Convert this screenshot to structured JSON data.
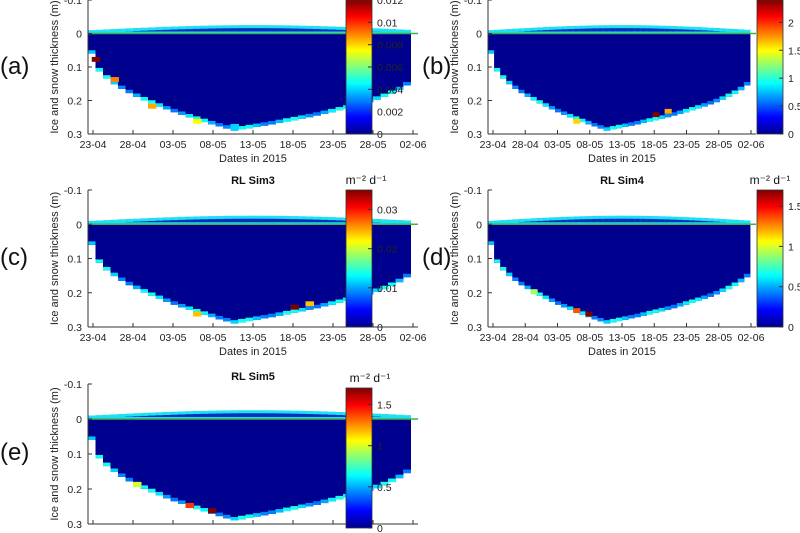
{
  "chart_data": [
    {
      "type": "heatmap",
      "panel_label": "(a)",
      "title": "",
      "xlabel": "Dates in 2015",
      "ylabel": "Ice and snow thickness (m)",
      "x_ticks": [
        "23-04",
        "28-04",
        "03-05",
        "08-05",
        "13-05",
        "18-05",
        "23-05",
        "28-05",
        "02-06"
      ],
      "y_ticks": [
        "-0.1",
        "0",
        "0.1",
        "0.2",
        "0.3"
      ],
      "ylim": [
        -0.1,
        0.3
      ],
      "colorbar_unit": "",
      "colorbar_ticks": [
        "0",
        "0.002",
        "0.004",
        "0.006",
        "0.008",
        "0.01",
        "0.012"
      ],
      "colorbar_range": [
        0,
        0.012
      ],
      "hotspots": [
        {
          "date_offset_days": 0.5,
          "depth_m": 0.08,
          "value": 0.012
        },
        {
          "date_offset_days": 3,
          "depth_m": 0.14,
          "value": 0.009
        },
        {
          "date_offset_days": 8,
          "depth_m": 0.22,
          "value": 0.0085
        },
        {
          "date_offset_days": 14,
          "depth_m": 0.265,
          "value": 0.0075
        },
        {
          "date_offset_days": 19,
          "depth_m": 0.28,
          "value": 0.004
        }
      ]
    },
    {
      "type": "heatmap",
      "panel_label": "(b)",
      "title": "",
      "xlabel": "Dates in 2015",
      "ylabel": "Ice and snow thickness (m)",
      "x_ticks": [
        "23-04",
        "28-04",
        "03-05",
        "08-05",
        "13-05",
        "18-05",
        "23-05",
        "28-05",
        "02-06"
      ],
      "y_ticks": [
        "-0.1",
        "0",
        "0.1",
        "0.2",
        "0.3"
      ],
      "ylim": [
        -0.1,
        0.3
      ],
      "colorbar_unit": "",
      "colorbar_ticks": [
        "0",
        "0.5",
        "1",
        "1.5",
        "2"
      ],
      "colorbar_range": [
        0,
        2.4
      ],
      "hotspots": [
        {
          "date_offset_days": 14,
          "depth_m": 0.265,
          "value": 1.6
        },
        {
          "date_offset_days": 27,
          "depth_m": 0.245,
          "value": 2.4
        },
        {
          "date_offset_days": 29,
          "depth_m": 0.235,
          "value": 1.7
        }
      ]
    },
    {
      "type": "heatmap",
      "panel_label": "(c)",
      "title": "RL Sim3",
      "xlabel": "Dates in 2015",
      "ylabel": "Ice and snow thickness (m)",
      "x_ticks": [
        "23-04",
        "28-04",
        "03-05",
        "08-05",
        "13-05",
        "18-05",
        "23-05",
        "28-05",
        "02-06"
      ],
      "y_ticks": [
        "-0.1",
        "0",
        "0.1",
        "0.2",
        "0.3"
      ],
      "ylim": [
        -0.1,
        0.3
      ],
      "colorbar_unit": "m⁻² d⁻¹",
      "colorbar_ticks": [
        "0",
        "0.01",
        "0.02",
        "0.03"
      ],
      "colorbar_range": [
        0,
        0.035
      ],
      "hotspots": [
        {
          "date_offset_days": 14,
          "depth_m": 0.265,
          "value": 0.024
        },
        {
          "date_offset_days": 27,
          "depth_m": 0.245,
          "value": 0.035
        },
        {
          "date_offset_days": 29,
          "depth_m": 0.235,
          "value": 0.024
        }
      ]
    },
    {
      "type": "heatmap",
      "panel_label": "(d)",
      "title": "RL Sim4",
      "xlabel": "Dates in 2015",
      "ylabel": "Ice and snow thickness (m)",
      "x_ticks": [
        "23-04",
        "28-04",
        "03-05",
        "08-05",
        "13-05",
        "18-05",
        "23-05",
        "28-05",
        "02-06"
      ],
      "y_ticks": [
        "-0.1",
        "0",
        "0.1",
        "0.2",
        "0.3"
      ],
      "ylim": [
        -0.1,
        0.3
      ],
      "colorbar_unit": "m⁻² d⁻¹",
      "colorbar_ticks": [
        "0",
        "0.5",
        "1",
        "1.5"
      ],
      "colorbar_range": [
        0,
        1.7
      ],
      "hotspots": [
        {
          "date_offset_days": 7,
          "depth_m": 0.2,
          "value": 0.9
        },
        {
          "date_offset_days": 14,
          "depth_m": 0.255,
          "value": 1.35
        },
        {
          "date_offset_days": 16,
          "depth_m": 0.265,
          "value": 1.7
        }
      ]
    },
    {
      "type": "heatmap",
      "panel_label": "(e)",
      "title": "RL Sim5",
      "xlabel": "",
      "ylabel": "Ice and snow thickness (m)",
      "x_ticks": [],
      "y_ticks": [
        "-0.1",
        "0",
        "0.1",
        "0.2",
        "0.3"
      ],
      "ylim": [
        -0.1,
        0.3
      ],
      "colorbar_unit": "m⁻² d⁻¹",
      "colorbar_ticks": [
        "0",
        "0.5",
        "1",
        "1.5"
      ],
      "colorbar_range": [
        0,
        1.7
      ],
      "hotspots": [
        {
          "date_offset_days": 6,
          "depth_m": 0.19,
          "value": 1.0
        },
        {
          "date_offset_days": 13,
          "depth_m": 0.25,
          "value": 1.4
        },
        {
          "date_offset_days": 16,
          "depth_m": 0.265,
          "value": 1.7
        }
      ]
    }
  ]
}
